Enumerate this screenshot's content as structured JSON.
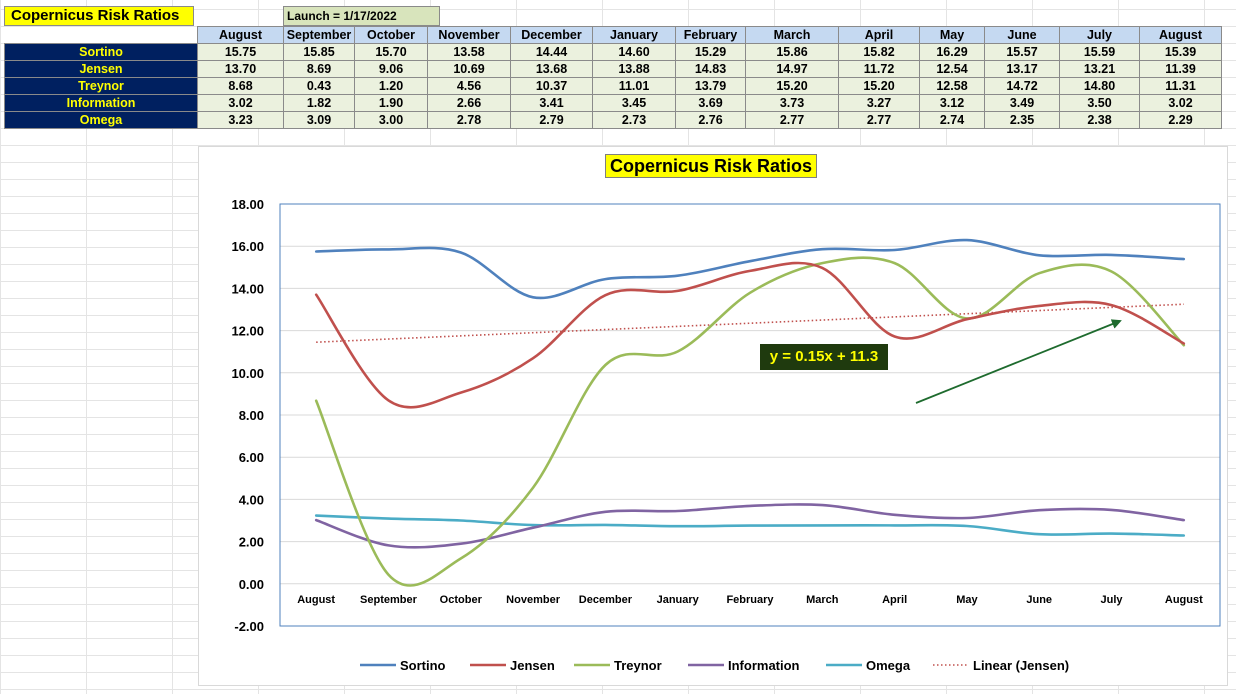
{
  "sheet_title": "Copernicus Risk Ratios",
  "launch_label": "Launch = 1/17/2022",
  "table": {
    "months": [
      "August",
      "September",
      "October",
      "November",
      "December",
      "January",
      "February",
      "March",
      "April",
      "May",
      "June",
      "July",
      "August"
    ],
    "rows": [
      {
        "name": "Sortino",
        "values": [
          "15.75",
          "15.85",
          "15.70",
          "13.58",
          "14.44",
          "14.60",
          "15.29",
          "15.86",
          "15.82",
          "16.29",
          "15.57",
          "15.59",
          "15.39"
        ]
      },
      {
        "name": "Jensen",
        "values": [
          "13.70",
          "8.69",
          "9.06",
          "10.69",
          "13.68",
          "13.88",
          "14.83",
          "14.97",
          "11.72",
          "12.54",
          "13.17",
          "13.21",
          "11.39"
        ]
      },
      {
        "name": "Treynor",
        "values": [
          "8.68",
          "0.43",
          "1.20",
          "4.56",
          "10.37",
          "11.01",
          "13.79",
          "15.20",
          "15.20",
          "12.58",
          "14.72",
          "14.80",
          "11.31"
        ]
      },
      {
        "name": "Information",
        "values": [
          "3.02",
          "1.82",
          "1.90",
          "2.66",
          "3.41",
          "3.45",
          "3.69",
          "3.73",
          "3.27",
          "3.12",
          "3.49",
          "3.50",
          "3.02"
        ]
      },
      {
        "name": "Omega",
        "values": [
          "3.23",
          "3.09",
          "3.00",
          "2.78",
          "2.79",
          "2.73",
          "2.76",
          "2.77",
          "2.77",
          "2.74",
          "2.35",
          "2.38",
          "2.29"
        ]
      }
    ]
  },
  "trend_equation": "y = 0.15x + 11.3",
  "colors": {
    "Sortino": "#4f81bd",
    "Jensen": "#c0504d",
    "Treynor": "#9bbb59",
    "Information": "#8064a2",
    "Omega": "#4bacc6",
    "trend": "#c0504d",
    "arrow": "#1e6b2e"
  },
  "chart_data": {
    "type": "line",
    "title": "Copernicus Risk Ratios",
    "categories": [
      "August",
      "September",
      "October",
      "November",
      "December",
      "January",
      "February",
      "March",
      "April",
      "May",
      "June",
      "July",
      "August"
    ],
    "series": [
      {
        "name": "Sortino",
        "values": [
          15.75,
          15.85,
          15.7,
          13.58,
          14.44,
          14.6,
          15.29,
          15.86,
          15.82,
          16.29,
          15.57,
          15.59,
          15.39
        ]
      },
      {
        "name": "Jensen",
        "values": [
          13.7,
          8.69,
          9.06,
          10.69,
          13.68,
          13.88,
          14.83,
          14.97,
          11.72,
          12.54,
          13.17,
          13.21,
          11.39
        ]
      },
      {
        "name": "Treynor",
        "values": [
          8.68,
          0.43,
          1.2,
          4.56,
          10.37,
          11.01,
          13.79,
          15.2,
          15.2,
          12.58,
          14.72,
          14.8,
          11.31
        ]
      },
      {
        "name": "Information",
        "values": [
          3.02,
          1.82,
          1.9,
          2.66,
          3.41,
          3.45,
          3.69,
          3.73,
          3.27,
          3.12,
          3.49,
          3.5,
          3.02
        ]
      },
      {
        "name": "Omega",
        "values": [
          3.23,
          3.09,
          3.0,
          2.78,
          2.79,
          2.73,
          2.76,
          2.77,
          2.77,
          2.74,
          2.35,
          2.38,
          2.29
        ]
      }
    ],
    "trendline": {
      "name": "Linear (Jensen)",
      "slope": 0.15,
      "intercept": 11.3,
      "style": "dotted"
    },
    "ylim": [
      -2,
      18
    ],
    "ytick_labels": [
      "18.00",
      "16.00",
      "14.00",
      "12.00",
      "10.00",
      "8.00",
      "6.00",
      "4.00",
      "2.00",
      "0.00",
      "-2.00"
    ],
    "grid": true,
    "smooth": true,
    "legend": "bottom",
    "legend_entries": [
      "Sortino",
      "Jensen",
      "Treynor",
      "Information",
      "Omega",
      "Linear (Jensen)"
    ],
    "annotation": "y = 0.15x + 11.3"
  }
}
